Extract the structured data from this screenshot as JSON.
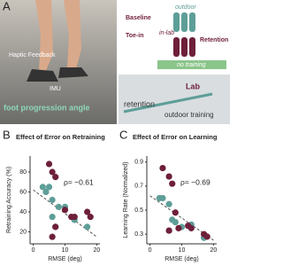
{
  "panel_a": {
    "label": "A",
    "photo_labels": {
      "haptic": "Haptic Feedback",
      "imu": "IMU",
      "angle": "foot progression angle"
    },
    "diagram": {
      "baseline": "Baseline",
      "toe_in": "Toe-in",
      "outdoor": "outdoor",
      "in_lab": "in-lab",
      "retention": "Retention",
      "no_training": "no training"
    },
    "map": {
      "lab": "Lab",
      "retention": "retention",
      "outdoor_training": "outdoor training"
    }
  },
  "chart_data": [
    {
      "type": "scatter",
      "label": "B",
      "title": "Effect of Error on Retraining",
      "xlabel": "RMSE (deg)",
      "ylabel": "Retraining Accuracy (%)",
      "xlim": [
        -1,
        21
      ],
      "xticks": [
        0,
        10,
        20
      ],
      "ylim": [
        8,
        96
      ],
      "yticks": [
        20,
        40,
        60,
        80
      ],
      "series": [
        {
          "color": "#5e9e98",
          "x": [
            3,
            4,
            5,
            6,
            6,
            7,
            8,
            10,
            13,
            17
          ],
          "values": [
            65,
            60,
            65,
            52,
            35,
            25,
            45,
            45,
            32,
            25
          ]
        },
        {
          "color": "#6e1f3a",
          "x": [
            5,
            6,
            7,
            6,
            7,
            10,
            12,
            13,
            17,
            18
          ],
          "values": [
            88,
            80,
            75,
            15,
            25,
            42,
            35,
            35,
            40,
            35
          ]
        }
      ],
      "trendline": {
        "x": [
          0,
          20
        ],
        "values": [
          62,
          15
        ]
      },
      "annotation": "ρ= −0.61"
    },
    {
      "type": "scatter",
      "label": "C",
      "title": "Effect of Error on Learning",
      "xlabel": "RMSE (deg)",
      "ylabel": "Learning Rate (Normalized)",
      "xlim": [
        -1,
        21
      ],
      "xticks": [
        0,
        10,
        20
      ],
      "ylim": [
        0.22,
        0.95
      ],
      "yticks": [
        0.3,
        0.5,
        0.7,
        0.9
      ],
      "series": [
        {
          "color": "#5e9e98",
          "x": [
            3,
            4,
            6,
            7,
            6,
            8,
            10,
            13,
            17
          ],
          "values": [
            0.6,
            0.6,
            0.55,
            0.42,
            0.33,
            0.4,
            0.36,
            0.38,
            0.27
          ]
        },
        {
          "color": "#6e1f3a",
          "x": [
            4,
            6,
            7,
            6,
            8,
            9,
            12,
            13,
            17,
            18
          ],
          "values": [
            0.85,
            0.78,
            0.72,
            0.33,
            0.48,
            0.35,
            0.37,
            0.35,
            0.3,
            0.28
          ]
        }
      ],
      "trendline": {
        "x": [
          0,
          20
        ],
        "values": [
          0.62,
          0.25
        ]
      },
      "annotation": "ρ= −0.69"
    }
  ]
}
